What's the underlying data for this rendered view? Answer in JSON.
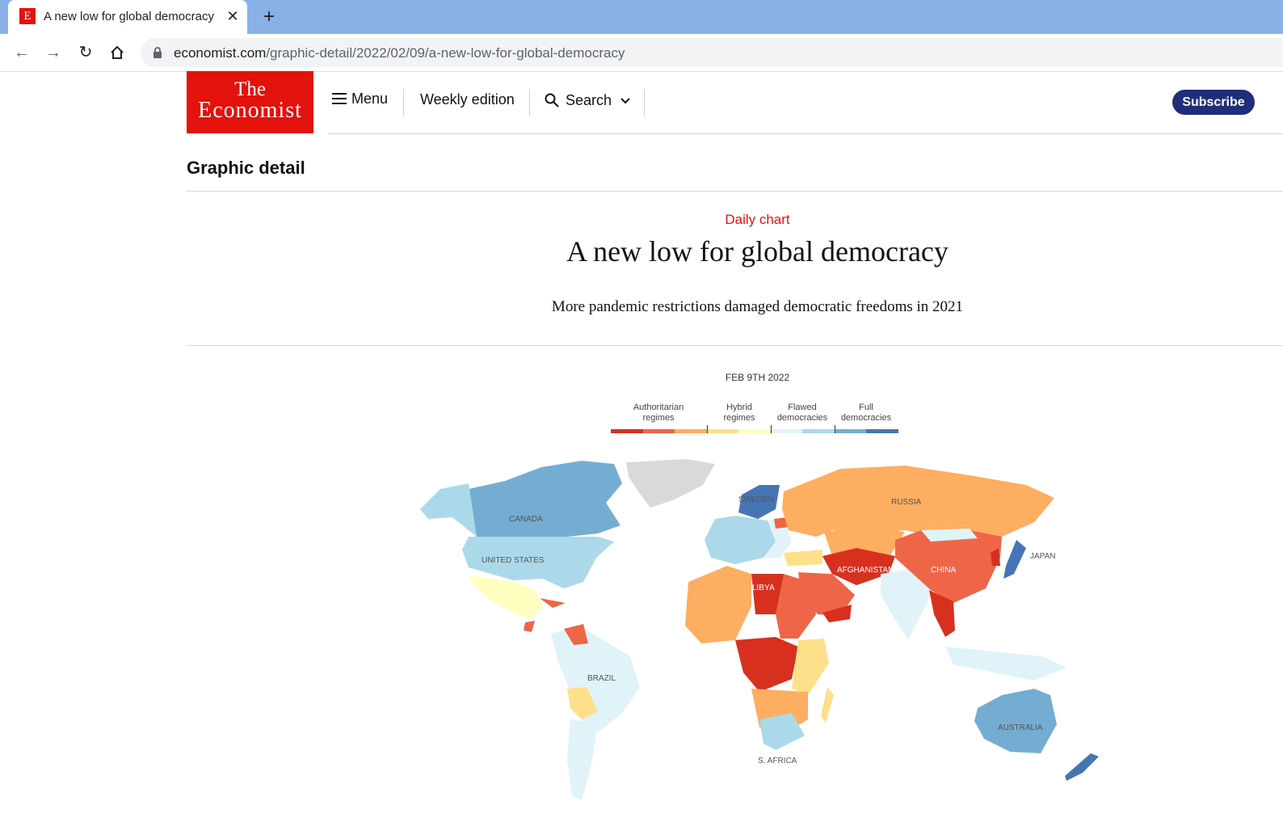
{
  "browser": {
    "tab_title": "A new low for global democracy",
    "url_domain": "economist.com",
    "url_path": "/graphic-detail/2022/02/09/a-new-low-for-global-democracy"
  },
  "header": {
    "logo_line1": "The",
    "logo_line2": "Economist",
    "menu_label": "Menu",
    "weekly_label": "Weekly edition",
    "search_label": "Search",
    "subscribe_label": "Subscribe"
  },
  "article": {
    "section": "Graphic detail",
    "kicker": "Daily chart",
    "headline": "A new low for global democracy",
    "rubric": "More pandemic restrictions damaged democratic freedoms in 2021",
    "date": "FEB 9TH 2022"
  },
  "legend": {
    "categories": [
      {
        "label_line1": "Authoritarian",
        "label_line2": "regimes"
      },
      {
        "label_line1": "Hybrid",
        "label_line2": "regimes"
      },
      {
        "label_line1": "Flawed",
        "label_line2": "democracies"
      },
      {
        "label_line1": "Full",
        "label_line2": "democracies"
      }
    ],
    "colors": [
      "#d7301f",
      "#ef6548",
      "#fdae61",
      "#fee08b",
      "#ffffbf",
      "#e0f3f8",
      "#abd9e9",
      "#74add1",
      "#4575b4"
    ]
  },
  "map": {
    "labels": [
      "CANADA",
      "UNITED STATES",
      "BRAZIL",
      "SWEDEN",
      "RUSSIA",
      "JAPAN",
      "CHINA",
      "AFGHANISTAN",
      "LIBYA",
      "AUSTRALIA",
      "S. AFRICA"
    ]
  }
}
